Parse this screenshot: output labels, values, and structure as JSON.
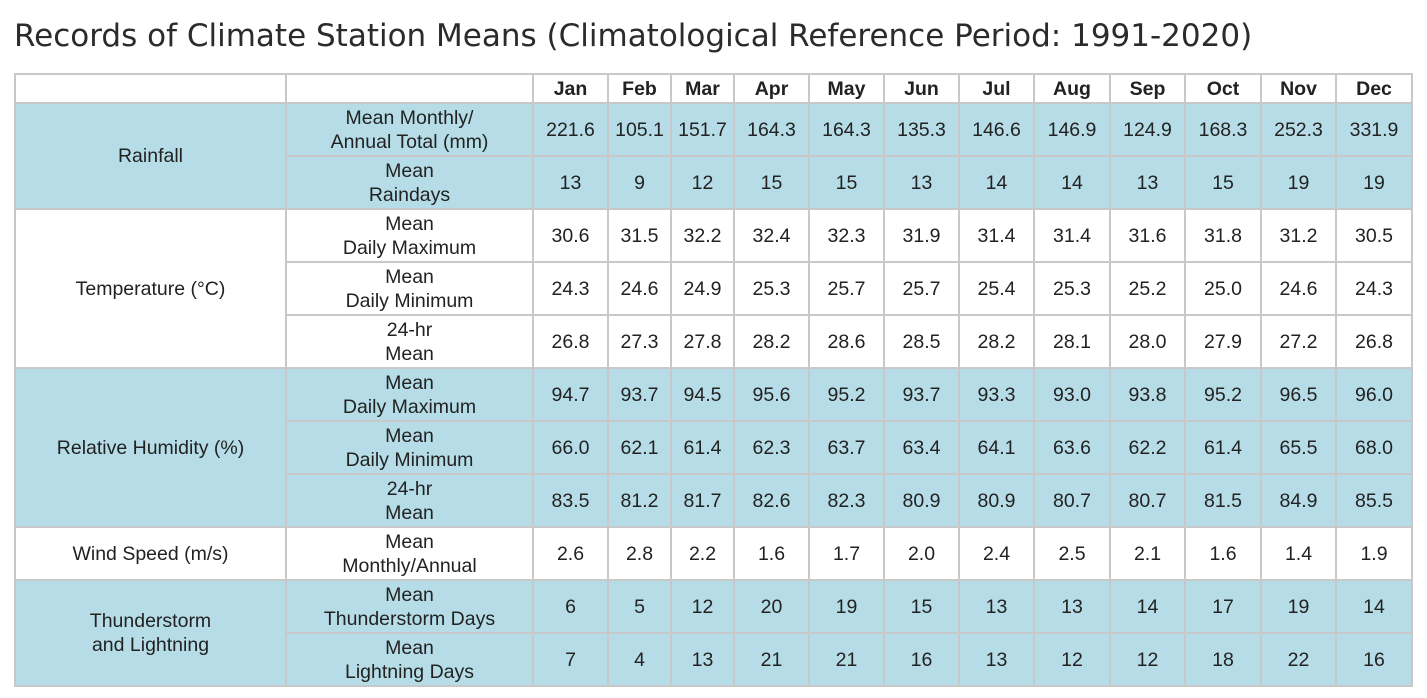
{
  "title": "Records of Climate Station Means (Climatological Reference Period: 1991-2020)",
  "months": [
    "Jan",
    "Feb",
    "Mar",
    "Apr",
    "May",
    "Jun",
    "Jul",
    "Aug",
    "Sep",
    "Oct",
    "Nov",
    "Dec"
  ],
  "groups": [
    {
      "label": "Rainfall",
      "rows": [
        {
          "label": "Mean Monthly/\nAnnual Total (mm)",
          "values": [
            "221.6",
            "105.1",
            "151.7",
            "164.3",
            "164.3",
            "135.3",
            "146.6",
            "146.9",
            "124.9",
            "168.3",
            "252.3",
            "331.9"
          ]
        },
        {
          "label": "Mean\nRaindays",
          "values": [
            "13",
            "9",
            "12",
            "15",
            "15",
            "13",
            "14",
            "14",
            "13",
            "15",
            "19",
            "19"
          ]
        }
      ]
    },
    {
      "label": "Temperature (°C)",
      "rows": [
        {
          "label": "Mean\nDaily Maximum",
          "values": [
            "30.6",
            "31.5",
            "32.2",
            "32.4",
            "32.3",
            "31.9",
            "31.4",
            "31.4",
            "31.6",
            "31.8",
            "31.2",
            "30.5"
          ]
        },
        {
          "label": "Mean\nDaily Minimum",
          "values": [
            "24.3",
            "24.6",
            "24.9",
            "25.3",
            "25.7",
            "25.7",
            "25.4",
            "25.3",
            "25.2",
            "25.0",
            "24.6",
            "24.3"
          ]
        },
        {
          "label": "24-hr\nMean",
          "values": [
            "26.8",
            "27.3",
            "27.8",
            "28.2",
            "28.6",
            "28.5",
            "28.2",
            "28.1",
            "28.0",
            "27.9",
            "27.2",
            "26.8"
          ]
        }
      ]
    },
    {
      "label": "Relative Humidity (%)",
      "rows": [
        {
          "label": "Mean\nDaily Maximum",
          "values": [
            "94.7",
            "93.7",
            "94.5",
            "95.6",
            "95.2",
            "93.7",
            "93.3",
            "93.0",
            "93.8",
            "95.2",
            "96.5",
            "96.0"
          ]
        },
        {
          "label": "Mean\nDaily Minimum",
          "values": [
            "66.0",
            "62.1",
            "61.4",
            "62.3",
            "63.7",
            "63.4",
            "64.1",
            "63.6",
            "62.2",
            "61.4",
            "65.5",
            "68.0"
          ]
        },
        {
          "label": "24-hr\nMean",
          "values": [
            "83.5",
            "81.2",
            "81.7",
            "82.6",
            "82.3",
            "80.9",
            "80.9",
            "80.7",
            "80.7",
            "81.5",
            "84.9",
            "85.5"
          ]
        }
      ]
    },
    {
      "label": "Wind Speed (m/s)",
      "rows": [
        {
          "label": "Mean\nMonthly/Annual",
          "values": [
            "2.6",
            "2.8",
            "2.2",
            "1.6",
            "1.7",
            "2.0",
            "2.4",
            "2.5",
            "2.1",
            "1.6",
            "1.4",
            "1.9"
          ]
        }
      ]
    },
    {
      "label": "Thunderstorm\nand Lightning",
      "rows": [
        {
          "label": "Mean\nThunderstorm Days",
          "values": [
            "6",
            "5",
            "12",
            "20",
            "19",
            "15",
            "13",
            "13",
            "14",
            "17",
            "19",
            "14"
          ]
        },
        {
          "label": "Mean\nLightning Days",
          "values": [
            "7",
            "4",
            "13",
            "21",
            "21",
            "16",
            "13",
            "12",
            "12",
            "18",
            "22",
            "16"
          ]
        }
      ]
    }
  ],
  "colors": {
    "band_blue": "#b6dde7",
    "band_white": "#ffffff",
    "grid": "#c8c8c8"
  }
}
